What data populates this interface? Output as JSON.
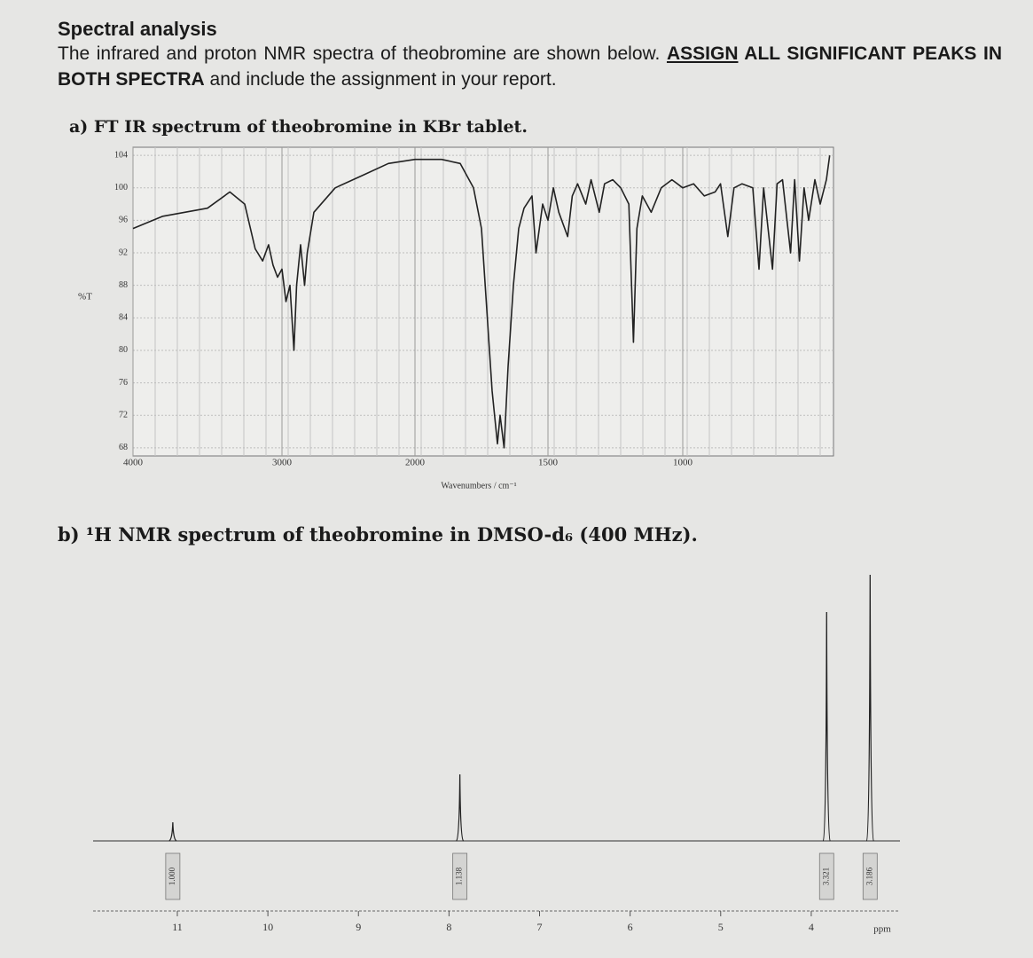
{
  "document": {
    "title": "Spectral analysis",
    "intro": [
      "The infrared and proton NMR spectra of theobromine are shown below. ",
      "ASSIGN",
      " ALL SIGNIFICANT PEAKS IN BOTH SPECTRA",
      " and include the assignment in your report."
    ],
    "caption_a": "a) FT IR spectrum of theobromine in KBr tablet.",
    "caption_b": "b) ¹H NMR spectrum of theobromine in DMSO-d₆ (400 MHz)."
  },
  "chart_data": [
    {
      "type": "line",
      "xlabel": "Wavenumbers / cm⁻¹",
      "ylabel": "%T",
      "color": "#222222",
      "grid": true,
      "xlim": [
        4000,
        455
      ],
      "xticks": [
        4000,
        3000,
        2000,
        1500,
        1000
      ],
      "ylim": [
        67,
        105
      ],
      "yticks": [
        104,
        100,
        96,
        92,
        88,
        84,
        80,
        76,
        72,
        68
      ],
      "x": [
        4000,
        3800,
        3500,
        3350,
        3250,
        3180,
        3130,
        3090,
        3060,
        3030,
        3000,
        2970,
        2940,
        2910,
        2890,
        2860,
        2830,
        2810,
        2760,
        2600,
        2400,
        2200,
        2000,
        1900,
        1830,
        1780,
        1750,
        1730,
        1710,
        1690,
        1680,
        1665,
        1650,
        1630,
        1610,
        1590,
        1560,
        1545,
        1520,
        1500,
        1480,
        1460,
        1427,
        1410,
        1390,
        1360,
        1340,
        1310,
        1290,
        1260,
        1230,
        1200,
        1183,
        1170,
        1150,
        1117,
        1080,
        1040,
        1000,
        960,
        920,
        880,
        860,
        833,
        810,
        780,
        740,
        717,
        700,
        667,
        650,
        630,
        600,
        585,
        567,
        550,
        533,
        510,
        490,
        467,
        455
      ],
      "values": [
        95,
        96.5,
        97.5,
        99.5,
        98,
        92.5,
        91,
        93,
        90.5,
        89,
        90,
        86,
        88,
        80,
        88,
        93,
        88,
        92,
        97,
        100,
        101.5,
        103,
        103.5,
        103.5,
        103,
        100,
        95,
        85,
        75,
        68.5,
        72,
        68,
        78,
        88,
        95,
        97.5,
        99,
        92,
        98,
        96,
        100,
        97,
        94,
        99,
        100.5,
        98,
        101,
        97,
        100.5,
        101,
        100,
        98,
        81,
        95,
        99,
        97,
        100,
        101,
        100,
        100.5,
        99,
        99.5,
        100.5,
        94,
        100,
        100.5,
        100,
        90,
        100,
        90,
        100.5,
        101,
        92,
        101,
        91,
        100,
        96,
        101,
        98,
        101,
        104
      ]
    },
    {
      "type": "spectrum",
      "xlabel": "ppm",
      "color": "#222222",
      "xlim": [
        11.93,
        3.02
      ],
      "xticks": [
        11,
        10,
        9,
        8,
        7,
        6,
        5,
        4
      ],
      "x": [
        11.05,
        7.88,
        3.83,
        3.35
      ],
      "values": [
        7,
        25,
        86,
        100
      ],
      "integral_labels": [
        "1.000",
        "1.138",
        "3.321",
        "3.186"
      ]
    }
  ]
}
